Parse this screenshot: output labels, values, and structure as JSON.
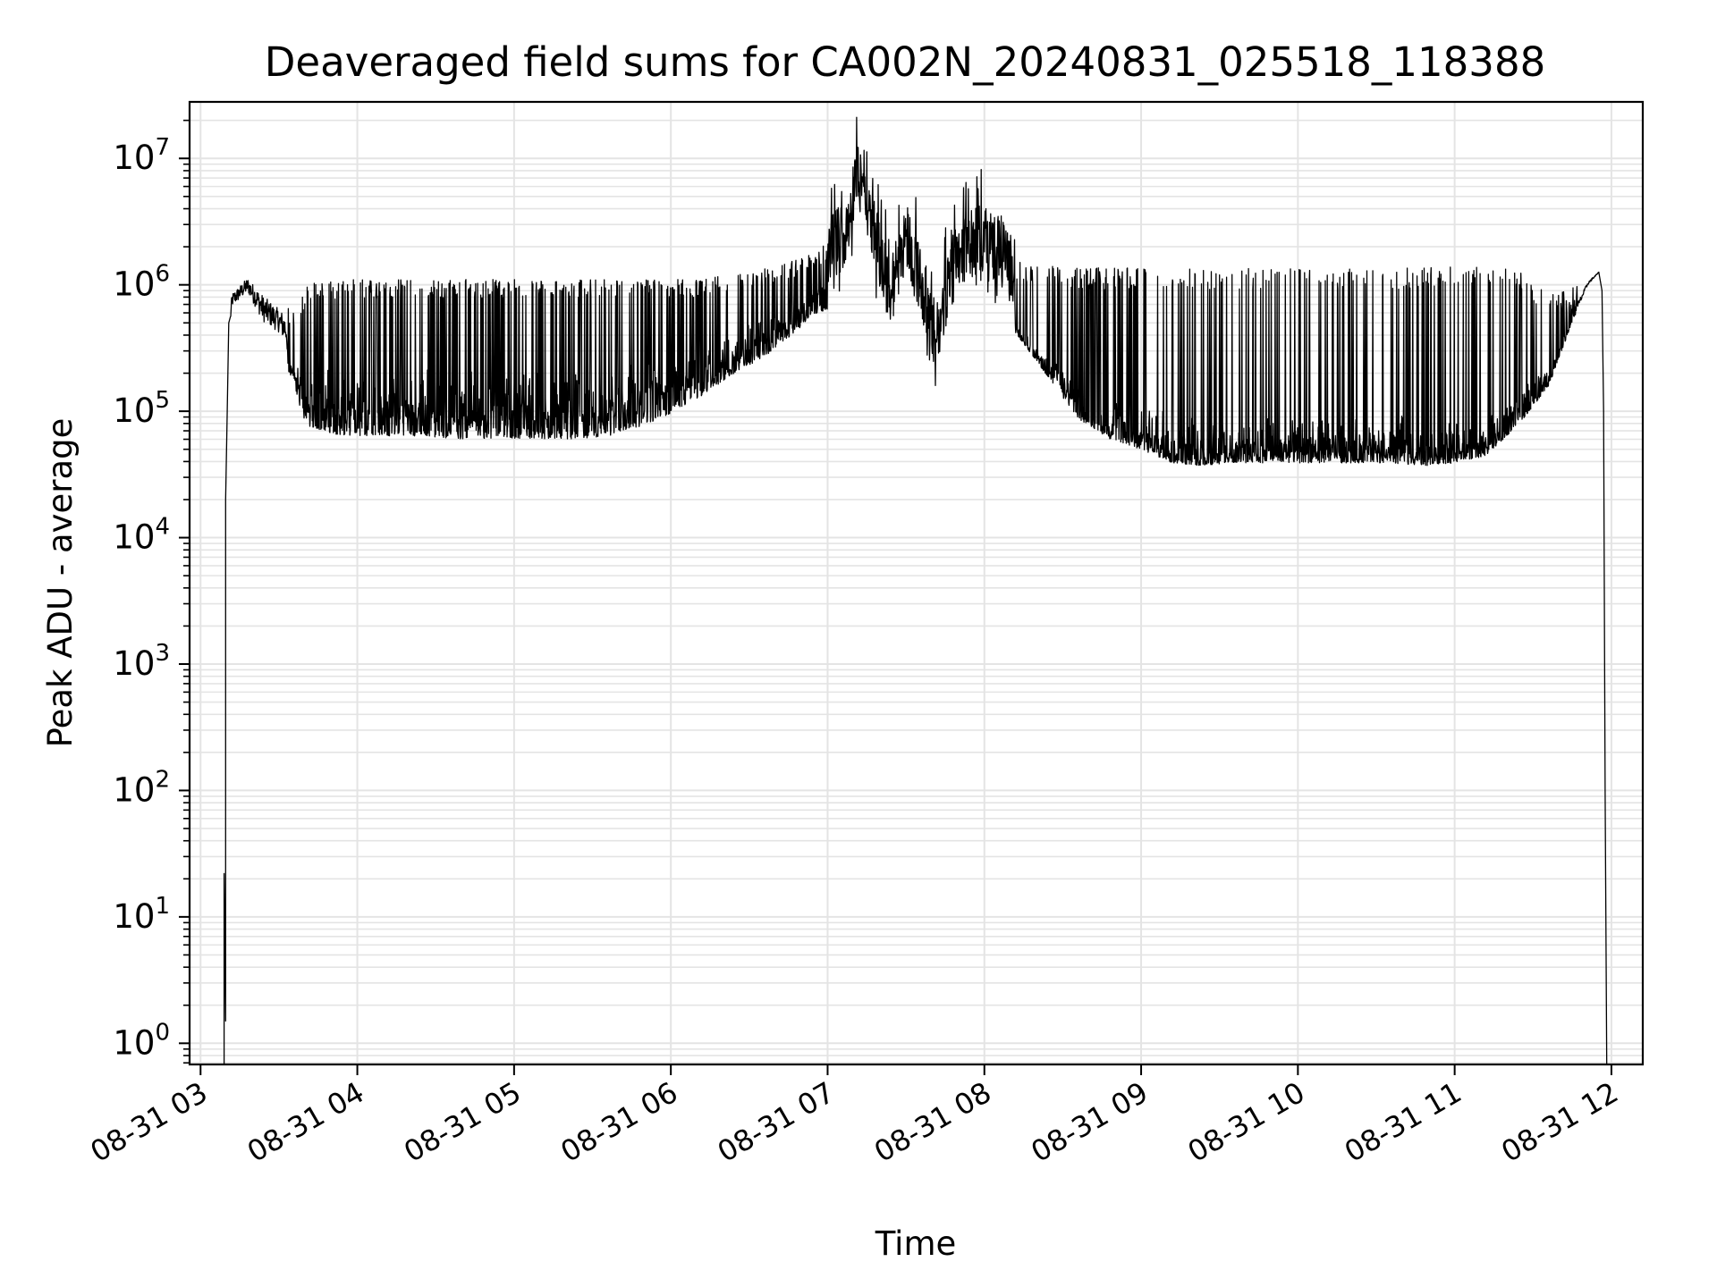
{
  "chart_data": {
    "type": "line",
    "title": "Deaveraged field sums for CA002N_20240831_025518_118388",
    "xlabel": "Time",
    "ylabel": "Peak ADU - average",
    "x_unit": "hours",
    "x_range": [
      2.93,
      12.2
    ],
    "y_scale": "log",
    "ylim": [
      0.68,
      28000000
    ],
    "grid": true,
    "line_color": "#000000",
    "grid_color": "#e4e4e4",
    "x_ticks": [
      {
        "value": 3,
        "label": "08-31 03"
      },
      {
        "value": 4,
        "label": "08-31 04"
      },
      {
        "value": 5,
        "label": "08-31 05"
      },
      {
        "value": 6,
        "label": "08-31 06"
      },
      {
        "value": 7,
        "label": "08-31 07"
      },
      {
        "value": 8,
        "label": "08-31 08"
      },
      {
        "value": 9,
        "label": "08-31 09"
      },
      {
        "value": 10,
        "label": "08-31 10"
      },
      {
        "value": 11,
        "label": "08-31 11"
      },
      {
        "value": 12,
        "label": "08-31 12"
      }
    ],
    "y_ticks": [
      {
        "value": 1,
        "base": "10",
        "exp": "0"
      },
      {
        "value": 10,
        "base": "10",
        "exp": "1"
      },
      {
        "value": 100,
        "base": "10",
        "exp": "2"
      },
      {
        "value": 1000,
        "base": "10",
        "exp": "3"
      },
      {
        "value": 10000,
        "base": "10",
        "exp": "4"
      },
      {
        "value": 100000,
        "base": "10",
        "exp": "5"
      },
      {
        "value": 1000000,
        "base": "10",
        "exp": "6"
      },
      {
        "value": 10000000,
        "base": "10",
        "exp": "7"
      }
    ],
    "series": [
      {
        "lower_envelope": {
          "x": [
            3.14,
            3.2,
            3.3,
            3.4,
            3.5,
            3.6,
            3.65,
            3.7,
            3.8,
            3.9,
            4.0,
            4.2,
            4.4,
            4.6,
            4.8,
            5.0,
            5.2,
            5.4,
            5.6,
            5.8,
            6.0,
            6.2,
            6.4,
            6.6,
            6.8,
            6.9,
            7.0
          ],
          "y": [
            100000,
            550000,
            700000,
            350000,
            300000,
            150000,
            80000,
            65000,
            60000,
            55000,
            55000,
            55000,
            55000,
            52000,
            52000,
            52000,
            52000,
            52000,
            55000,
            65000,
            85000,
            120000,
            180000,
            250000,
            400000,
            550000,
            600000
          ]
        },
        "upper_envelope": {
          "x": [
            3.14,
            3.2,
            3.3,
            3.4,
            3.5,
            3.6,
            3.65,
            3.7,
            3.8,
            3.9,
            4.0,
            4.2,
            4.4,
            4.6,
            4.8,
            5.0,
            5.2,
            5.4,
            5.6,
            5.8,
            6.0,
            6.2,
            6.4,
            6.6,
            6.8,
            6.9,
            7.0
          ],
          "y": [
            100000,
            900000,
            1200000,
            900000,
            700000,
            600000,
            800000,
            1000000,
            1000000,
            1050000,
            1050000,
            1050000,
            1050000,
            1050000,
            1050000,
            1050000,
            1050000,
            1050000,
            1050000,
            1050000,
            1050000,
            1050000,
            1200000,
            1300000,
            1500000,
            1800000,
            2000000
          ]
        },
        "peak_band": {
          "x": [
            7.0,
            7.1,
            7.15,
            7.2,
            7.25,
            7.3,
            7.35,
            7.4,
            7.45,
            7.5,
            7.6,
            7.7,
            7.8,
            7.9,
            8.0,
            8.1,
            8.2
          ],
          "y": [
            1800000,
            2500000,
            4000000,
            9000000,
            6000000,
            2500000,
            1500000,
            800000,
            1500000,
            2600000,
            1000000,
            350000,
            1800000,
            2000000,
            2500000,
            1800000,
            1200000
          ]
        },
        "late_lower_envelope": {
          "x": [
            8.2,
            8.4,
            8.6,
            8.8,
            9.0,
            9.2,
            9.4,
            9.6,
            9.8,
            10.0,
            10.2,
            10.4,
            10.6,
            10.8,
            11.0,
            11.2,
            11.4,
            11.6,
            11.75,
            11.85,
            11.92
          ],
          "y": [
            400000,
            180000,
            80000,
            55000,
            45000,
            35000,
            33000,
            35000,
            35000,
            35000,
            35000,
            35000,
            35000,
            33000,
            35000,
            40000,
            70000,
            150000,
            500000,
            1000000,
            1250000
          ]
        },
        "late_upper_envelope": {
          "x": [
            8.2,
            8.4,
            8.6,
            8.8,
            9.0,
            9.2,
            9.4,
            9.6,
            9.8,
            10.0,
            10.2,
            10.4,
            10.6,
            10.8,
            11.0,
            11.2,
            11.4,
            11.6,
            11.75,
            11.85,
            11.92
          ],
          "y": [
            1500000,
            1350000,
            1300000,
            1300000,
            1300000,
            1300000,
            1300000,
            1300000,
            1300000,
            1300000,
            1300000,
            1300000,
            1300000,
            1300000,
            1350000,
            1350000,
            1300000,
            800000,
            900000,
            1200000,
            1300000
          ]
        },
        "edge_start": {
          "x": [
            3.15,
            3.15,
            3.16,
            3.16,
            3.17,
            3.18
          ],
          "y": [
            0.68,
            22,
            1.5,
            20000,
            100000,
            500000
          ]
        },
        "edge_end": {
          "x": [
            11.92,
            11.94,
            11.95,
            11.96,
            11.97
          ],
          "y": [
            1250000,
            900000,
            100000,
            100,
            0.68
          ]
        }
      }
    ]
  }
}
